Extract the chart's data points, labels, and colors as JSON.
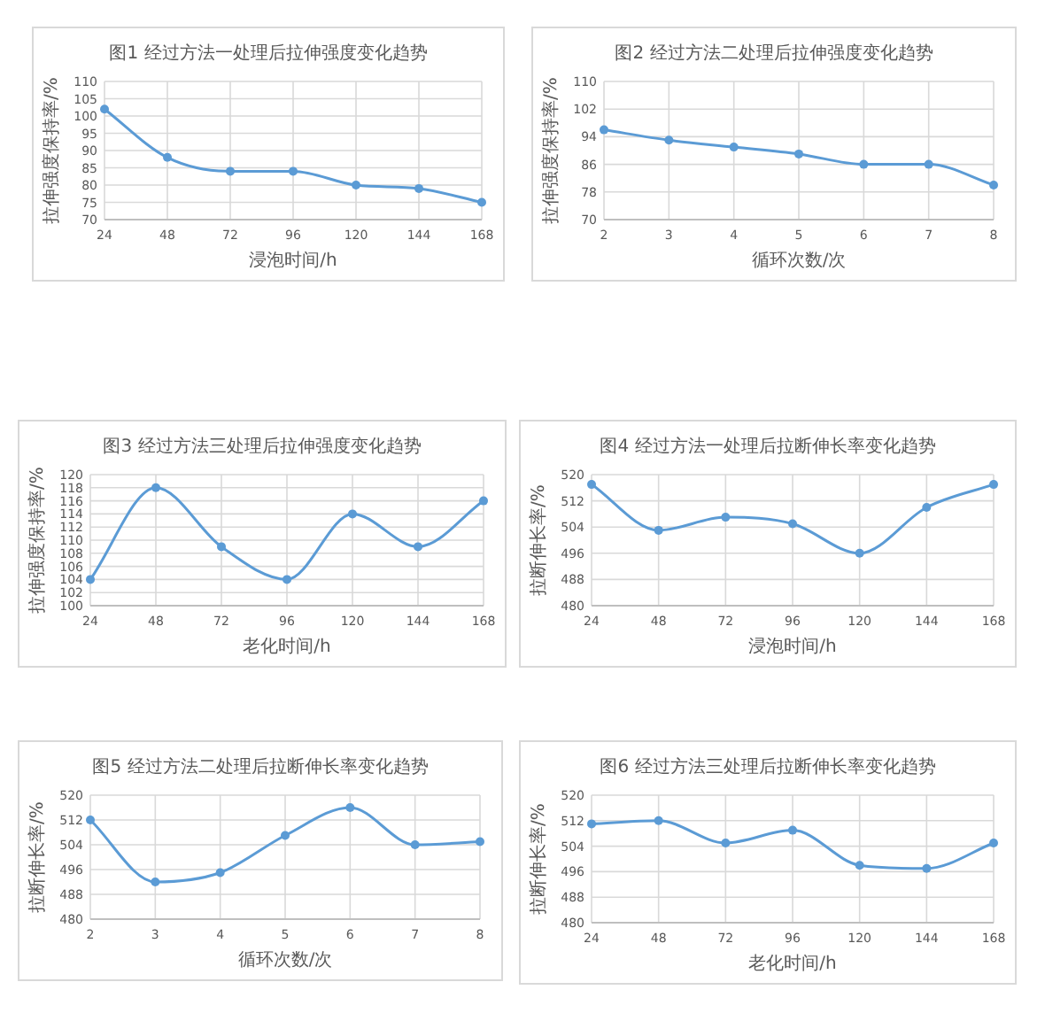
{
  "chart_data": [
    {
      "type": "line",
      "title": "图1 经过方法一处理后拉伸强度变化趋势",
      "xlabel": "浸泡时间/h",
      "ylabel": "拉伸强度保持率/%",
      "categories": [
        "24",
        "48",
        "72",
        "96",
        "120",
        "144",
        "168"
      ],
      "series": [
        {
          "color": "#5b9bd5",
          "values": [
            102,
            88,
            84,
            84,
            80,
            79,
            75
          ]
        }
      ],
      "ylim": [
        70,
        110
      ],
      "yticks": [
        70,
        75,
        80,
        85,
        90,
        95,
        100,
        105,
        110
      ],
      "grid": true,
      "marker": "circle"
    },
    {
      "type": "line",
      "title": "图2 经过方法二处理后拉伸强度变化趋势",
      "xlabel": "循环次数/次",
      "ylabel": "拉伸强度保持率/%",
      "categories": [
        "2",
        "3",
        "4",
        "5",
        "6",
        "7",
        "8"
      ],
      "series": [
        {
          "color": "#5b9bd5",
          "values": [
            96,
            93,
            91,
            89,
            86,
            86,
            80
          ]
        }
      ],
      "ylim": [
        70,
        110
      ],
      "yticks": [
        70,
        78,
        86,
        94,
        102,
        110
      ],
      "grid": true,
      "marker": "circle"
    },
    {
      "type": "line",
      "title": "图3 经过方法三处理后拉伸强度变化趋势",
      "xlabel": "老化时间/h",
      "ylabel": "拉伸强度保持率/%",
      "categories": [
        "24",
        "48",
        "72",
        "96",
        "120",
        "144",
        "168"
      ],
      "series": [
        {
          "color": "#5b9bd5",
          "values": [
            104,
            118,
            109,
            104,
            114,
            109,
            116
          ]
        }
      ],
      "ylim": [
        100,
        120
      ],
      "yticks": [
        100,
        102,
        104,
        106,
        108,
        110,
        112,
        114,
        116,
        118,
        120
      ],
      "grid": true,
      "marker": "circle"
    },
    {
      "type": "line",
      "title": "图4 经过方法一处理后拉断伸长率变化趋势",
      "xlabel": "浸泡时间/h",
      "ylabel": "拉断伸长率/%",
      "categories": [
        "24",
        "48",
        "72",
        "96",
        "120",
        "144",
        "168"
      ],
      "series": [
        {
          "color": "#5b9bd5",
          "values": [
            517,
            503,
            507,
            505,
            496,
            510,
            517
          ]
        }
      ],
      "ylim": [
        480,
        520
      ],
      "yticks": [
        480,
        488,
        496,
        504,
        512,
        520
      ],
      "grid": true,
      "marker": "circle"
    },
    {
      "type": "line",
      "title": "图5 经过方法二处理后拉断伸长率变化趋势",
      "xlabel": "循环次数/次",
      "ylabel": "拉断伸长率/%",
      "categories": [
        "2",
        "3",
        "4",
        "5",
        "6",
        "7",
        "8"
      ],
      "series": [
        {
          "color": "#5b9bd5",
          "values": [
            512,
            492,
            495,
            507,
            516,
            504,
            505
          ]
        }
      ],
      "ylim": [
        480,
        520
      ],
      "yticks": [
        480,
        488,
        496,
        504,
        512,
        520
      ],
      "grid": true,
      "marker": "circle"
    },
    {
      "type": "line",
      "title": "图6 经过方法三处理后拉断伸长率变化趋势",
      "xlabel": "老化时间/h",
      "ylabel": "拉断伸长率/%",
      "categories": [
        "24",
        "48",
        "72",
        "96",
        "120",
        "144",
        "168"
      ],
      "series": [
        {
          "color": "#5b9bd5",
          "values": [
            511,
            512,
            505,
            509,
            498,
            497,
            505
          ]
        }
      ],
      "ylim": [
        480,
        520
      ],
      "yticks": [
        480,
        488,
        496,
        504,
        512,
        520
      ],
      "grid": true,
      "marker": "circle"
    }
  ]
}
